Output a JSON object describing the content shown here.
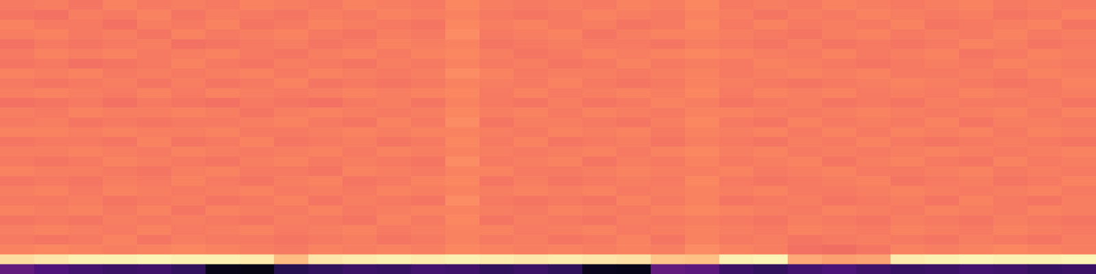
{
  "chart_data": {
    "type": "heatmap",
    "tick_labels": false,
    "zlim": [
      0,
      1
    ],
    "values": [
      [
        0.72,
        0.73,
        0.71,
        0.74,
        0.72,
        0.73,
        0.72,
        0.74,
        0.73,
        0.72,
        0.74,
        0.73,
        0.72,
        0.75,
        0.73,
        0.72,
        0.73,
        0.72,
        0.74,
        0.73,
        0.75,
        0.72,
        0.73,
        0.72,
        0.74,
        0.73,
        0.72,
        0.73,
        0.74,
        0.72,
        0.73,
        0.72
      ],
      [
        0.71,
        0.7,
        0.73,
        0.72,
        0.74,
        0.71,
        0.73,
        0.72,
        0.71,
        0.73,
        0.72,
        0.74,
        0.73,
        0.74,
        0.72,
        0.71,
        0.72,
        0.74,
        0.73,
        0.72,
        0.74,
        0.73,
        0.71,
        0.73,
        0.72,
        0.74,
        0.73,
        0.72,
        0.73,
        0.71,
        0.72,
        0.74
      ],
      [
        0.74,
        0.72,
        0.72,
        0.7,
        0.73,
        0.72,
        0.74,
        0.71,
        0.72,
        0.74,
        0.73,
        0.72,
        0.71,
        0.75,
        0.73,
        0.74,
        0.72,
        0.73,
        0.71,
        0.72,
        0.75,
        0.72,
        0.74,
        0.72,
        0.73,
        0.72,
        0.74,
        0.71,
        0.72,
        0.73,
        0.74,
        0.71
      ],
      [
        0.73,
        0.74,
        0.72,
        0.73,
        0.71,
        0.74,
        0.72,
        0.73,
        0.74,
        0.72,
        0.71,
        0.73,
        0.72,
        0.76,
        0.72,
        0.73,
        0.74,
        0.71,
        0.73,
        0.74,
        0.74,
        0.73,
        0.72,
        0.71,
        0.73,
        0.74,
        0.72,
        0.73,
        0.72,
        0.74,
        0.72,
        0.73
      ],
      [
        0.7,
        0.72,
        0.71,
        0.72,
        0.73,
        0.7,
        0.71,
        0.72,
        0.73,
        0.71,
        0.72,
        0.74,
        0.73,
        0.74,
        0.71,
        0.72,
        0.73,
        0.72,
        0.72,
        0.71,
        0.73,
        0.72,
        0.71,
        0.73,
        0.71,
        0.72,
        0.71,
        0.72,
        0.74,
        0.73,
        0.71,
        0.72
      ],
      [
        0.72,
        0.74,
        0.73,
        0.74,
        0.72,
        0.73,
        0.74,
        0.72,
        0.71,
        0.73,
        0.74,
        0.72,
        0.74,
        0.75,
        0.73,
        0.71,
        0.72,
        0.74,
        0.73,
        0.74,
        0.75,
        0.74,
        0.73,
        0.72,
        0.74,
        0.72,
        0.73,
        0.74,
        0.71,
        0.72,
        0.74,
        0.73
      ],
      [
        0.71,
        0.72,
        0.7,
        0.71,
        0.72,
        0.74,
        0.72,
        0.71,
        0.73,
        0.72,
        0.71,
        0.73,
        0.72,
        0.74,
        0.72,
        0.73,
        0.71,
        0.72,
        0.74,
        0.72,
        0.73,
        0.72,
        0.74,
        0.73,
        0.72,
        0.71,
        0.72,
        0.73,
        0.72,
        0.74,
        0.73,
        0.72
      ],
      [
        0.74,
        0.73,
        0.74,
        0.72,
        0.73,
        0.72,
        0.73,
        0.74,
        0.72,
        0.74,
        0.73,
        0.72,
        0.73,
        0.76,
        0.74,
        0.72,
        0.73,
        0.73,
        0.72,
        0.73,
        0.74,
        0.72,
        0.73,
        0.74,
        0.73,
        0.74,
        0.72,
        0.72,
        0.73,
        0.72,
        0.74,
        0.73
      ],
      [
        0.72,
        0.71,
        0.72,
        0.73,
        0.71,
        0.73,
        0.71,
        0.72,
        0.74,
        0.71,
        0.72,
        0.71,
        0.72,
        0.74,
        0.73,
        0.72,
        0.74,
        0.72,
        0.71,
        0.72,
        0.74,
        0.73,
        0.72,
        0.71,
        0.72,
        0.73,
        0.74,
        0.73,
        0.72,
        0.71,
        0.72,
        0.74
      ],
      [
        0.73,
        0.74,
        0.73,
        0.72,
        0.74,
        0.72,
        0.74,
        0.73,
        0.72,
        0.73,
        0.74,
        0.73,
        0.74,
        0.75,
        0.72,
        0.74,
        0.72,
        0.73,
        0.74,
        0.73,
        0.75,
        0.72,
        0.74,
        0.73,
        0.74,
        0.72,
        0.73,
        0.72,
        0.74,
        0.73,
        0.72,
        0.73
      ],
      [
        0.7,
        0.71,
        0.72,
        0.7,
        0.72,
        0.71,
        0.7,
        0.72,
        0.71,
        0.7,
        0.72,
        0.73,
        0.71,
        0.74,
        0.72,
        0.71,
        0.73,
        0.71,
        0.72,
        0.74,
        0.73,
        0.71,
        0.72,
        0.73,
        0.71,
        0.72,
        0.71,
        0.73,
        0.72,
        0.72,
        0.73,
        0.71
      ],
      [
        0.73,
        0.72,
        0.74,
        0.73,
        0.73,
        0.74,
        0.73,
        0.71,
        0.73,
        0.74,
        0.73,
        0.72,
        0.73,
        0.75,
        0.73,
        0.74,
        0.72,
        0.74,
        0.73,
        0.72,
        0.74,
        0.74,
        0.73,
        0.72,
        0.73,
        0.74,
        0.73,
        0.72,
        0.73,
        0.74,
        0.72,
        0.74
      ],
      [
        0.72,
        0.73,
        0.71,
        0.72,
        0.71,
        0.72,
        0.72,
        0.73,
        0.74,
        0.72,
        0.71,
        0.74,
        0.72,
        0.76,
        0.71,
        0.73,
        0.73,
        0.72,
        0.71,
        0.73,
        0.75,
        0.72,
        0.71,
        0.74,
        0.72,
        0.73,
        0.72,
        0.74,
        0.71,
        0.73,
        0.73,
        0.72
      ],
      [
        0.74,
        0.74,
        0.73,
        0.74,
        0.73,
        0.73,
        0.74,
        0.72,
        0.72,
        0.73,
        0.74,
        0.73,
        0.74,
        0.74,
        0.73,
        0.72,
        0.74,
        0.73,
        0.74,
        0.72,
        0.74,
        0.73,
        0.74,
        0.72,
        0.74,
        0.72,
        0.74,
        0.73,
        0.74,
        0.72,
        0.74,
        0.73
      ],
      [
        0.71,
        0.72,
        0.72,
        0.71,
        0.74,
        0.71,
        0.72,
        0.74,
        0.71,
        0.72,
        0.73,
        0.71,
        0.72,
        0.75,
        0.72,
        0.74,
        0.71,
        0.72,
        0.73,
        0.71,
        0.73,
        0.72,
        0.71,
        0.73,
        0.72,
        0.74,
        0.72,
        0.71,
        0.72,
        0.73,
        0.72,
        0.71
      ],
      [
        0.73,
        0.73,
        0.74,
        0.73,
        0.72,
        0.74,
        0.73,
        0.72,
        0.73,
        0.74,
        0.72,
        0.74,
        0.73,
        0.74,
        0.73,
        0.72,
        0.73,
        0.74,
        0.72,
        0.74,
        0.75,
        0.73,
        0.74,
        0.72,
        0.73,
        0.72,
        0.73,
        0.74,
        0.73,
        0.72,
        0.73,
        0.74
      ],
      [
        0.72,
        0.71,
        0.72,
        0.74,
        0.73,
        0.72,
        0.71,
        0.73,
        0.74,
        0.72,
        0.73,
        0.72,
        0.71,
        0.76,
        0.72,
        0.73,
        0.74,
        0.71,
        0.73,
        0.72,
        0.74,
        0.72,
        0.73,
        0.74,
        0.71,
        0.73,
        0.74,
        0.72,
        0.71,
        0.74,
        0.72,
        0.73
      ],
      [
        0.74,
        0.73,
        0.73,
        0.72,
        0.71,
        0.73,
        0.74,
        0.72,
        0.72,
        0.71,
        0.74,
        0.73,
        0.72,
        0.74,
        0.74,
        0.72,
        0.72,
        0.73,
        0.74,
        0.73,
        0.73,
        0.74,
        0.72,
        0.73,
        0.74,
        0.72,
        0.72,
        0.73,
        0.74,
        0.72,
        0.73,
        0.72
      ],
      [
        0.71,
        0.72,
        0.71,
        0.73,
        0.72,
        0.74,
        0.72,
        0.71,
        0.73,
        0.74,
        0.71,
        0.72,
        0.74,
        0.75,
        0.71,
        0.73,
        0.71,
        0.72,
        0.73,
        0.72,
        0.75,
        0.72,
        0.71,
        0.72,
        0.73,
        0.74,
        0.71,
        0.72,
        0.73,
        0.71,
        0.72,
        0.74
      ],
      [
        0.73,
        0.74,
        0.72,
        0.74,
        0.73,
        0.72,
        0.73,
        0.74,
        0.72,
        0.73,
        0.72,
        0.74,
        0.73,
        0.74,
        0.73,
        0.74,
        0.73,
        0.74,
        0.72,
        0.73,
        0.74,
        0.73,
        0.74,
        0.72,
        0.72,
        0.73,
        0.74,
        0.73,
        0.72,
        0.73,
        0.74,
        0.72
      ],
      [
        0.72,
        0.72,
        0.73,
        0.71,
        0.72,
        0.73,
        0.71,
        0.72,
        0.74,
        0.71,
        0.73,
        0.72,
        0.71,
        0.76,
        0.72,
        0.71,
        0.72,
        0.71,
        0.74,
        0.72,
        0.74,
        0.71,
        0.72,
        0.73,
        0.71,
        0.72,
        0.73,
        0.71,
        0.74,
        0.72,
        0.71,
        0.73
      ],
      [
        0.74,
        0.73,
        0.74,
        0.72,
        0.74,
        0.71,
        0.74,
        0.73,
        0.72,
        0.74,
        0.72,
        0.73,
        0.74,
        0.74,
        0.73,
        0.72,
        0.74,
        0.73,
        0.72,
        0.74,
        0.75,
        0.74,
        0.73,
        0.72,
        0.74,
        0.73,
        0.72,
        0.74,
        0.73,
        0.72,
        0.74,
        0.73
      ],
      [
        0.71,
        0.72,
        0.71,
        0.73,
        0.72,
        0.73,
        0.72,
        0.71,
        0.73,
        0.72,
        0.71,
        0.74,
        0.72,
        0.75,
        0.71,
        0.73,
        0.72,
        0.71,
        0.73,
        0.72,
        0.73,
        0.72,
        0.71,
        0.73,
        0.72,
        0.71,
        0.73,
        0.72,
        0.71,
        0.73,
        0.72,
        0.71
      ],
      [
        0.73,
        0.74,
        0.73,
        0.72,
        0.74,
        0.72,
        0.73,
        0.74,
        0.72,
        0.73,
        0.74,
        0.72,
        0.73,
        0.74,
        0.74,
        0.72,
        0.73,
        0.74,
        0.72,
        0.73,
        0.74,
        0.73,
        0.72,
        0.74,
        0.73,
        0.72,
        0.74,
        0.73,
        0.72,
        0.74,
        0.73,
        0.72
      ],
      [
        0.72,
        0.71,
        0.72,
        0.74,
        0.71,
        0.73,
        0.72,
        0.72,
        0.71,
        0.72,
        0.73,
        0.71,
        0.72,
        0.74,
        0.72,
        0.73,
        0.71,
        0.72,
        0.74,
        0.71,
        0.74,
        0.72,
        0.73,
        0.71,
        0.72,
        0.73,
        0.72,
        0.71,
        0.73,
        0.72,
        0.71,
        0.73
      ],
      [
        0.74,
        0.75,
        0.74,
        0.73,
        0.74,
        0.75,
        0.74,
        0.73,
        0.72,
        0.74,
        0.73,
        0.74,
        0.73,
        0.75,
        0.74,
        0.73,
        0.74,
        0.73,
        0.74,
        0.73,
        0.76,
        0.74,
        0.73,
        0.7,
        0.69,
        0.71,
        0.74,
        0.73,
        0.74,
        0.75,
        0.74,
        0.73
      ],
      [
        0.93,
        0.95,
        0.97,
        0.97,
        0.98,
        0.97,
        0.97,
        0.96,
        0.86,
        0.95,
        0.96,
        0.97,
        0.96,
        0.97,
        0.96,
        0.95,
        0.96,
        0.95,
        0.94,
        0.88,
        0.87,
        0.97,
        0.98,
        0.82,
        0.8,
        0.81,
        0.96,
        0.97,
        0.98,
        0.97,
        0.97,
        0.98
      ],
      [
        0.3,
        0.25,
        0.22,
        0.2,
        0.21,
        0.18,
        0.04,
        0.03,
        0.15,
        0.18,
        0.2,
        0.19,
        0.22,
        0.21,
        0.18,
        0.2,
        0.17,
        0.05,
        0.04,
        0.3,
        0.28,
        0.2,
        0.18,
        0.22,
        0.24,
        0.21,
        0.19,
        0.2,
        0.22,
        0.21,
        0.19,
        0.2
      ]
    ]
  }
}
